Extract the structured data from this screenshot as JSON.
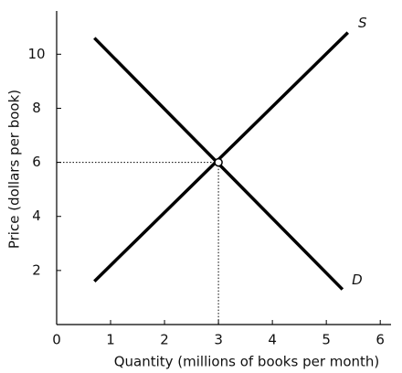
{
  "chart_data": {
    "type": "line",
    "x_label": "Quantity (millions of books per month)",
    "y_label": "Price (dollars per book)",
    "xlim": [
      0,
      6.2
    ],
    "ylim": [
      0,
      11.6
    ],
    "xticks": [
      0,
      1,
      2,
      3,
      4,
      5,
      6
    ],
    "yticks": [
      2,
      4,
      6,
      8,
      10
    ],
    "series": [
      {
        "name": "S",
        "color": "#000000",
        "x": [
          0.7,
          5.4
        ],
        "values": [
          1.6,
          10.8
        ]
      },
      {
        "name": "D",
        "color": "#000000",
        "x": [
          0.7,
          5.3
        ],
        "values": [
          10.6,
          1.3
        ]
      }
    ],
    "equilibrium": {
      "x": 3,
      "y": 6
    }
  }
}
